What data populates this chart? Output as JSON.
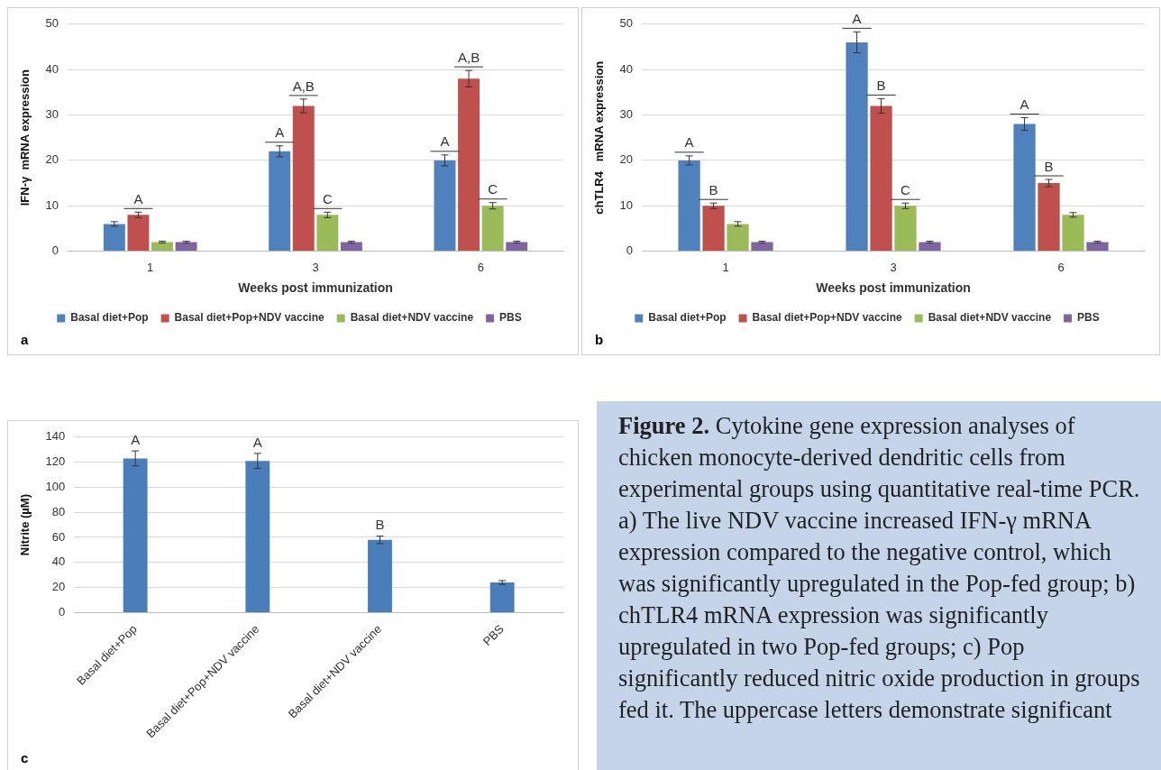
{
  "chart_data": [
    {
      "type": "bar",
      "xlabel": "Weeks post immunization",
      "ylabel": "IFN-γ  mRNA expression",
      "categories": [
        "1",
        "3",
        "6"
      ],
      "ylim": [
        0,
        50
      ],
      "yticks": [
        0,
        10,
        20,
        30,
        40,
        50
      ],
      "grid": "y",
      "legend": "bottom",
      "series": [
        {
          "name": "Basal diet+Pop",
          "color": "#4f81bd",
          "values": [
            6,
            22,
            20
          ],
          "errors": [
            0.5,
            1.2,
            1.2
          ],
          "value_labels": [
            null,
            "A",
            "A"
          ]
        },
        {
          "name": "Basal diet+Pop+NDV vaccine",
          "color": "#c0504d",
          "values": [
            8,
            32,
            38
          ],
          "errors": [
            0.6,
            1.5,
            1.8
          ],
          "value_labels": [
            "A",
            "A,B",
            "A,B"
          ]
        },
        {
          "name": "Basal diet+NDV vaccine",
          "color": "#9bbb59",
          "values": [
            2,
            8,
            10
          ],
          "errors": [
            0.2,
            0.6,
            0.7
          ],
          "value_labels": [
            null,
            "C",
            "C"
          ]
        },
        {
          "name": "PBS",
          "color": "#8064a2",
          "values": [
            2,
            2,
            2
          ],
          "errors": [
            0.2,
            0.2,
            0.2
          ]
        }
      ],
      "annotations": [
        "a"
      ]
    },
    {
      "type": "bar",
      "xlabel": "Weeks post immunization",
      "ylabel": "chTLR4   mRNA expression",
      "categories": [
        "1",
        "3",
        "6"
      ],
      "ylim": [
        0,
        50
      ],
      "yticks": [
        0,
        10,
        20,
        30,
        40,
        50
      ],
      "grid": "y",
      "legend": "bottom",
      "series": [
        {
          "name": "Basal diet+Pop",
          "color": "#4f81bd",
          "values": [
            20,
            46,
            28
          ],
          "errors": [
            1,
            2.3,
            1.4
          ],
          "value_labels": [
            "A",
            "A",
            "A"
          ]
        },
        {
          "name": "Basal diet+Pop+NDV vaccine",
          "color": "#c0504d",
          "values": [
            10,
            32,
            15
          ],
          "errors": [
            0.6,
            1.6,
            0.8
          ],
          "value_labels": [
            "B",
            "B",
            "B"
          ]
        },
        {
          "name": "Basal diet+NDV vaccine",
          "color": "#9bbb59",
          "values": [
            6,
            10,
            8
          ],
          "errors": [
            0.5,
            0.6,
            0.5
          ],
          "value_labels": [
            null,
            "C",
            null
          ]
        },
        {
          "name": "PBS",
          "color": "#8064a2",
          "values": [
            2,
            2,
            2
          ],
          "errors": [
            0.2,
            0.2,
            0.2
          ]
        }
      ],
      "annotations": [
        "b"
      ]
    },
    {
      "type": "bar",
      "ylabel": "Nitrite (µM)",
      "categories": [
        "Basal diet+Pop",
        "Basal diet+Pop+NDV vaccine",
        "Basal diet+NDV vaccine",
        "PBS"
      ],
      "ylim": [
        0,
        140
      ],
      "yticks": [
        0,
        20,
        40,
        60,
        80,
        100,
        120,
        140
      ],
      "grid": "y",
      "color": "#4a7ebb",
      "values": [
        123,
        121,
        58,
        24
      ],
      "errors": [
        6,
        6,
        3,
        1.5
      ],
      "value_labels": [
        "A",
        "A",
        "B",
        null
      ],
      "annotations": [
        "c"
      ]
    },
    {
      "type": "other",
      "title": "Figure 2.",
      "annotations": [
        "Cytokine gene expression analyses of chicken monocyte-derived dendritic cells from experimental groups using quantitative real-time PCR. a) The live NDV vaccine increased IFN-γ mRNA expression compared to the negative control, which was significantly upregulated in the Pop-fed group; b) chTLR4 mRNA expression was significantly upregulated in two Pop-fed groups; c) Pop significantly reduced nitric oxide production in groups fed it. The uppercase letters demonstrate significant"
      ]
    }
  ]
}
